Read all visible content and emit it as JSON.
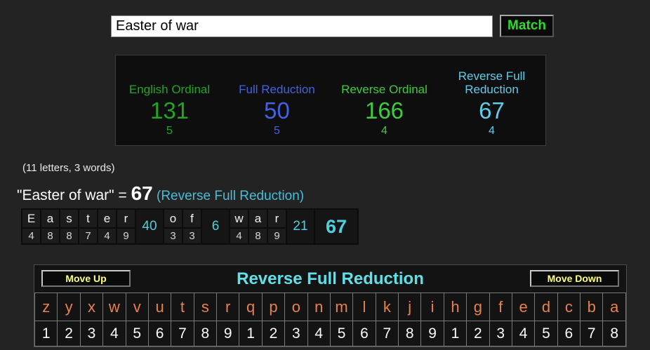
{
  "search": {
    "value": "Easter of war",
    "button_label": "Match"
  },
  "results": [
    {
      "label": "English Ordinal",
      "value": "131",
      "count": "5",
      "color": "#23a423"
    },
    {
      "label": "Full Reduction",
      "value": "50",
      "count": "5",
      "color": "#4461e2"
    },
    {
      "label": "Reverse Ordinal",
      "value": "166",
      "count": "4",
      "color": "#3ecb3e"
    },
    {
      "label": "Reverse Full Reduction",
      "value": "67",
      "count": "4",
      "color": "#63cbe8"
    }
  ],
  "summary": {
    "letters_words": "(11 letters, 3 words)",
    "phrase": "\"Easter of war\"",
    "equals": " = ",
    "value": "67",
    "cipher": " (Reverse Full Reduction)"
  },
  "breakdown": {
    "groups": [
      {
        "letters": [
          "E",
          "a",
          "s",
          "t",
          "e",
          "r"
        ],
        "values": [
          "4",
          "8",
          "8",
          "7",
          "4",
          "9"
        ],
        "sum": "40"
      },
      {
        "letters": [
          "o",
          "f"
        ],
        "values": [
          "3",
          "3"
        ],
        "sum": "6"
      },
      {
        "letters": [
          "w",
          "a",
          "r"
        ],
        "values": [
          "4",
          "8",
          "9"
        ],
        "sum": "21"
      }
    ],
    "total": "67"
  },
  "cipher_table": {
    "move_up_label": "Move Up",
    "move_down_label": "Move Down",
    "title": "Reverse Full Reduction",
    "letters": [
      "z",
      "y",
      "x",
      "w",
      "v",
      "u",
      "t",
      "s",
      "r",
      "q",
      "p",
      "o",
      "n",
      "m",
      "l",
      "k",
      "j",
      "i",
      "h",
      "g",
      "f",
      "e",
      "d",
      "c",
      "b",
      "a"
    ],
    "values": [
      "1",
      "2",
      "3",
      "4",
      "5",
      "6",
      "7",
      "8",
      "9",
      "1",
      "2",
      "3",
      "4",
      "5",
      "6",
      "7",
      "8",
      "9",
      "1",
      "2",
      "3",
      "4",
      "5",
      "6",
      "7",
      "8"
    ]
  },
  "colors": {
    "page_background": "#232323",
    "panel_background": "#0e0e0e",
    "match_green": "#2ddd2d",
    "summary_cyan": "#49bcd8",
    "breakdown_cyan": "#4fd0dc",
    "title_cyan": "#5fe0e8",
    "button_yellow": "#ffff7d",
    "alphabet_orange": "#e8814b"
  }
}
